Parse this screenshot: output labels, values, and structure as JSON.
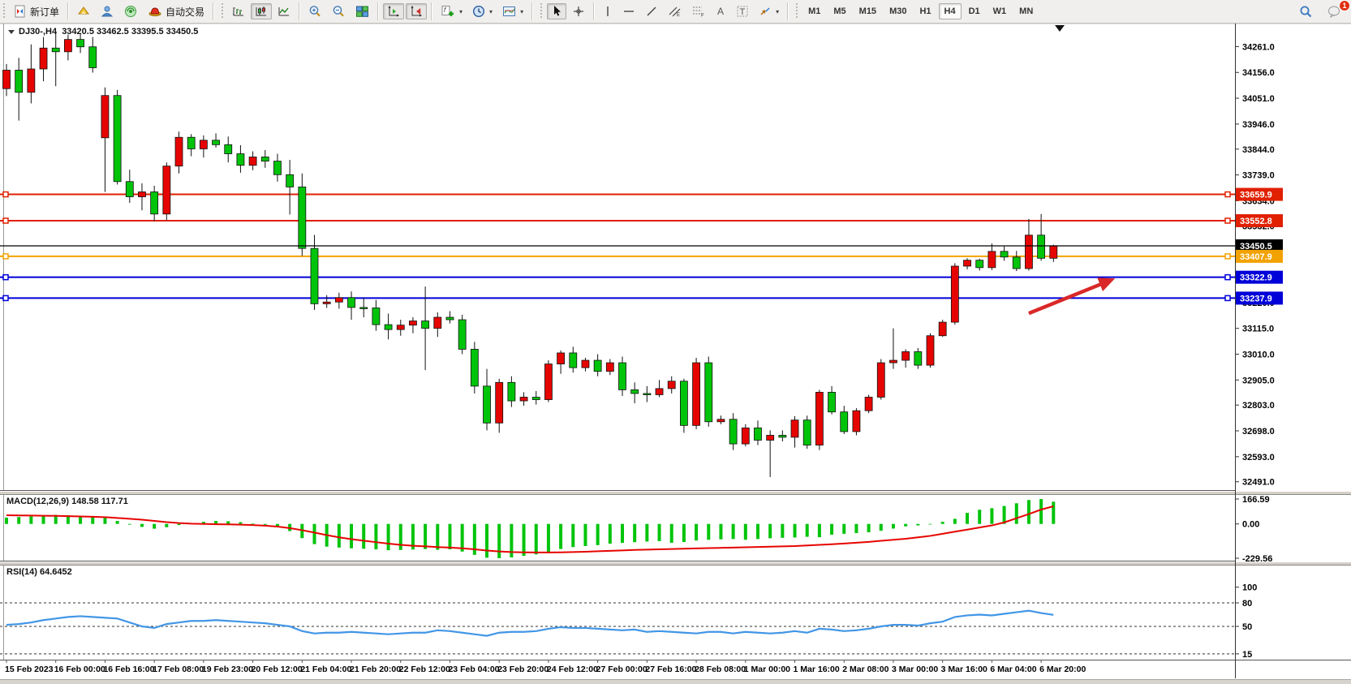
{
  "toolbar": {
    "new_order": "新订单",
    "autotrading": "自动交易",
    "timeframes": [
      "M1",
      "M5",
      "M15",
      "M30",
      "H1",
      "H4",
      "D1",
      "W1",
      "MN"
    ],
    "active_timeframe": "H4",
    "notification_count": "1"
  },
  "chart": {
    "title_line": "DJ30-,H4  33420.5 33462.5 33395.5 33450.5",
    "symbol": "DJ30-",
    "period": "H4",
    "open": "33420.5",
    "high": "33462.5",
    "low": "33395.5",
    "close": "33450.5"
  },
  "indicators": {
    "macd_label": "MACD(12,26,9) 148.58 117.71",
    "rsi_label": "RSI(14) 64.6452"
  },
  "price_axis": {
    "ticks": [
      {
        "label": "34261.0",
        "value": 34261
      },
      {
        "label": "34156.0",
        "value": 34156
      },
      {
        "label": "34051.0",
        "value": 34051
      },
      {
        "label": "33946.0",
        "value": 33946
      },
      {
        "label": "33844.0",
        "value": 33844
      },
      {
        "label": "33739.0",
        "value": 33739
      },
      {
        "label": "33634.0",
        "value": 33634
      },
      {
        "label": "33532.0",
        "value": 33532
      },
      {
        "label": "33220.0",
        "value": 33220
      },
      {
        "label": "33115.0",
        "value": 33115
      },
      {
        "label": "33010.0",
        "value": 33010
      },
      {
        "label": "32905.0",
        "value": 32905
      },
      {
        "label": "32803.0",
        "value": 32803
      },
      {
        "label": "32698.0",
        "value": 32698
      },
      {
        "label": "32593.0",
        "value": 32593
      },
      {
        "label": "32491.0",
        "value": 32491
      }
    ]
  },
  "chart_data": {
    "type": "candlestick",
    "symbol": "DJ30-",
    "timeframe": "H4",
    "last_quote": {
      "open": 33420.5,
      "high": 33462.5,
      "low": 33395.5,
      "close": 33450.5
    },
    "hlines": [
      {
        "price": 33659.9,
        "label": "33659.9",
        "color": "#e02000",
        "handles": true,
        "kind": "resistance"
      },
      {
        "price": 33552.8,
        "label": "33552.8",
        "color": "#e02000",
        "handles": true,
        "kind": "resistance"
      },
      {
        "price": 33450.5,
        "label": "33450.5",
        "color": "#000000",
        "handles": false,
        "kind": "current-price"
      },
      {
        "price": 33407.9,
        "label": "33407.9",
        "color": "#f2a200",
        "handles": true,
        "kind": "pivot"
      },
      {
        "price": 33322.9,
        "label": "33322.9",
        "color": "#0000d8",
        "handles": true,
        "kind": "support"
      },
      {
        "price": 33237.9,
        "label": "33237.9",
        "color": "#0000d8",
        "handles": true,
        "kind": "support"
      }
    ],
    "candles": [
      [
        34090,
        34190,
        34060,
        34165
      ],
      [
        34165,
        34215,
        33960,
        34075
      ],
      [
        34075,
        34270,
        34030,
        34170
      ],
      [
        34170,
        34300,
        34120,
        34255
      ],
      [
        34255,
        34320,
        34100,
        34240
      ],
      [
        34240,
        34310,
        34205,
        34290
      ],
      [
        34290,
        34315,
        34235,
        34260
      ],
      [
        34260,
        34300,
        34155,
        34175
      ],
      [
        33890,
        34095,
        33670,
        34062
      ],
      [
        34062,
        34085,
        33700,
        33712
      ],
      [
        33712,
        33760,
        33625,
        33650
      ],
      [
        33650,
        33705,
        33595,
        33670
      ],
      [
        33670,
        33695,
        33550,
        33580
      ],
      [
        33580,
        33790,
        33555,
        33775
      ],
      [
        33775,
        33915,
        33745,
        33892
      ],
      [
        33892,
        33905,
        33815,
        33845
      ],
      [
        33845,
        33900,
        33810,
        33880
      ],
      [
        33880,
        33908,
        33850,
        33862
      ],
      [
        33862,
        33895,
        33790,
        33825
      ],
      [
        33825,
        33860,
        33748,
        33778
      ],
      [
        33778,
        33835,
        33758,
        33812
      ],
      [
        33812,
        33840,
        33768,
        33795
      ],
      [
        33795,
        33825,
        33712,
        33740
      ],
      [
        33740,
        33800,
        33578,
        33690
      ],
      [
        33690,
        33745,
        33410,
        33440
      ],
      [
        33440,
        33495,
        33190,
        33215
      ],
      [
        33215,
        33250,
        33198,
        33222
      ],
      [
        33222,
        33260,
        33195,
        33240
      ],
      [
        33240,
        33265,
        33150,
        33200
      ],
      [
        33200,
        33240,
        33160,
        33198
      ],
      [
        33198,
        33230,
        33105,
        33130
      ],
      [
        33130,
        33175,
        33070,
        33110
      ],
      [
        33110,
        33150,
        33085,
        33128
      ],
      [
        33128,
        33160,
        33095,
        33145
      ],
      [
        33145,
        33285,
        32945,
        33115
      ],
      [
        33115,
        33180,
        33080,
        33160
      ],
      [
        33160,
        33185,
        33135,
        33150
      ],
      [
        33150,
        33170,
        33010,
        33030
      ],
      [
        33030,
        33060,
        32850,
        32880
      ],
      [
        32880,
        32950,
        32700,
        32730
      ],
      [
        32730,
        32910,
        32690,
        32895
      ],
      [
        32895,
        32920,
        32795,
        32820
      ],
      [
        32820,
        32855,
        32800,
        32835
      ],
      [
        32835,
        32860,
        32805,
        32825
      ],
      [
        32825,
        32985,
        32815,
        32970
      ],
      [
        32970,
        33025,
        32930,
        33015
      ],
      [
        33015,
        33040,
        32935,
        32955
      ],
      [
        32955,
        32995,
        32940,
        32985
      ],
      [
        32985,
        33010,
        32920,
        32940
      ],
      [
        32940,
        32990,
        32925,
        32975
      ],
      [
        32975,
        33000,
        32840,
        32865
      ],
      [
        32865,
        32895,
        32810,
        32850
      ],
      [
        32850,
        32880,
        32815,
        32845
      ],
      [
        32845,
        32905,
        32835,
        32870
      ],
      [
        32870,
        32920,
        32850,
        32900
      ],
      [
        32900,
        32910,
        32690,
        32720
      ],
      [
        32720,
        32995,
        32705,
        32975
      ],
      [
        32975,
        33000,
        32715,
        32735
      ],
      [
        32735,
        32760,
        32725,
        32745
      ],
      [
        32745,
        32770,
        32620,
        32645
      ],
      [
        32645,
        32725,
        32635,
        32710
      ],
      [
        32710,
        32740,
        32640,
        32660
      ],
      [
        32660,
        32700,
        32510,
        32680
      ],
      [
        32680,
        32700,
        32655,
        32672
      ],
      [
        32672,
        32758,
        32630,
        32742
      ],
      [
        32742,
        32760,
        32625,
        32640
      ],
      [
        32640,
        32865,
        32620,
        32855
      ],
      [
        32855,
        32880,
        32765,
        32775
      ],
      [
        32775,
        32800,
        32685,
        32695
      ],
      [
        32695,
        32790,
        32680,
        32780
      ],
      [
        32780,
        32845,
        32770,
        32835
      ],
      [
        32835,
        32990,
        32825,
        32975
      ],
      [
        32975,
        33115,
        32950,
        32985
      ],
      [
        32985,
        33030,
        32955,
        33020
      ],
      [
        33020,
        33035,
        32950,
        32965
      ],
      [
        32965,
        33095,
        32955,
        33085
      ],
      [
        33085,
        33150,
        33080,
        33140
      ],
      [
        33140,
        33380,
        33130,
        33368
      ],
      [
        33368,
        33400,
        33355,
        33392
      ],
      [
        33392,
        33398,
        33350,
        33362
      ],
      [
        33362,
        33460,
        33352,
        33428
      ],
      [
        33428,
        33448,
        33390,
        33405
      ],
      [
        33405,
        33430,
        33348,
        33358
      ],
      [
        33358,
        33560,
        33350,
        33494
      ],
      [
        33494,
        33580,
        33390,
        33400
      ],
      [
        33400,
        33455,
        33385,
        33450.5
      ]
    ],
    "macd": {
      "params": "12,26,9",
      "main_value": 148.58,
      "signal_value": 117.71,
      "scale_max": 166.59,
      "scale_mid": 0.0,
      "scale_min": -229.56,
      "scale_labels": [
        "166.59",
        "0.00",
        "-229.56"
      ],
      "histogram": [
        42,
        46,
        50,
        55,
        60,
        58,
        54,
        50,
        40,
        20,
        -5,
        -20,
        -32,
        -22,
        -8,
        4,
        14,
        20,
        18,
        12,
        4,
        -6,
        -22,
        -48,
        -95,
        -135,
        -152,
        -158,
        -163,
        -166,
        -170,
        -176,
        -174,
        -171,
        -168,
        -173,
        -170,
        -185,
        -207,
        -226,
        -229,
        -224,
        -214,
        -204,
        -186,
        -168,
        -155,
        -148,
        -142,
        -132,
        -127,
        -122,
        -118,
        -115,
        -126,
        -121,
        -111,
        -106,
        -103,
        -101,
        -106,
        -101,
        -96,
        -93,
        -91,
        -86,
        -89,
        -72,
        -66,
        -61,
        -56,
        -46,
        -31,
        -16,
        -10,
        -4,
        14,
        34,
        74,
        95,
        105,
        120,
        138,
        160,
        166.59,
        148.58
      ],
      "signal_line": [
        58,
        57,
        56,
        55,
        54,
        52,
        50,
        48,
        45,
        40,
        34,
        28,
        20,
        12,
        6,
        2,
        0,
        -2,
        -3,
        -5,
        -8,
        -12,
        -18,
        -28,
        -42,
        -58,
        -75,
        -90,
        -102,
        -112,
        -122,
        -132,
        -140,
        -146,
        -150,
        -155,
        -158,
        -163,
        -170,
        -178,
        -184,
        -188,
        -190,
        -191,
        -191,
        -190,
        -188,
        -186,
        -183,
        -180,
        -177,
        -174,
        -172,
        -170,
        -168,
        -166,
        -164,
        -162,
        -160,
        -158,
        -156,
        -154,
        -152,
        -150,
        -148,
        -144,
        -140,
        -136,
        -131,
        -126,
        -120,
        -113,
        -106,
        -99,
        -90,
        -80,
        -66,
        -52,
        -38,
        -24,
        -10,
        10,
        38,
        66,
        96,
        117.71
      ]
    },
    "rsi": {
      "period": 14,
      "value": 64.6452,
      "levels": [
        80,
        50,
        15
      ],
      "scale_labels": [
        "100",
        "80",
        "50",
        "15"
      ],
      "values": [
        52,
        53,
        55,
        58,
        60,
        62,
        63,
        62,
        61,
        60,
        55,
        50,
        48,
        53,
        55,
        57,
        57,
        58,
        57,
        56,
        55,
        54,
        52,
        50,
        44,
        41,
        42,
        42,
        43,
        42,
        41,
        40,
        41,
        42,
        42,
        45,
        44,
        42,
        40,
        38,
        42,
        43,
        43,
        44,
        47,
        49,
        48,
        48,
        47,
        46,
        45,
        46,
        43,
        44,
        43,
        42,
        41,
        43,
        43,
        41,
        43,
        42,
        41,
        42,
        44,
        42,
        47,
        46,
        44,
        45,
        47,
        50,
        52,
        52,
        51,
        54,
        56,
        62,
        64,
        65,
        64,
        66,
        68,
        70,
        67,
        64.65
      ]
    },
    "time_labels": [
      "15 Feb 2023",
      "16 Feb 00:00",
      "16 Feb 16:00",
      "17 Feb 08:00",
      "19 Feb 23:00",
      "20 Feb 12:00",
      "21 Feb 04:00",
      "21 Feb 20:00",
      "22 Feb 12:00",
      "23 Feb 04:00",
      "23 Feb 20:00",
      "24 Feb 12:00",
      "27 Feb 00:00",
      "27 Feb 16:00",
      "28 Feb 08:00",
      "1 Mar 00:00",
      "1 Mar 16:00",
      "2 Mar 08:00",
      "3 Mar 00:00",
      "3 Mar 16:00",
      "6 Mar 04:00",
      "6 Mar 20:00"
    ],
    "annotations": {
      "arrow": {
        "type": "arrow",
        "color": "#da2828",
        "from": {
          "bar": 83,
          "price": 33176
        },
        "to": {
          "bar": 90,
          "price": 33318
        }
      }
    }
  },
  "colors": {
    "bull": "#e60400",
    "bear": "#00c40a",
    "candle_border": "#111111",
    "macd_hist": "#00c40a",
    "macd_signal": "#e60400",
    "rsi_line": "#4296e6",
    "axis_text": "#000000",
    "badge_text": "#ffffff"
  }
}
